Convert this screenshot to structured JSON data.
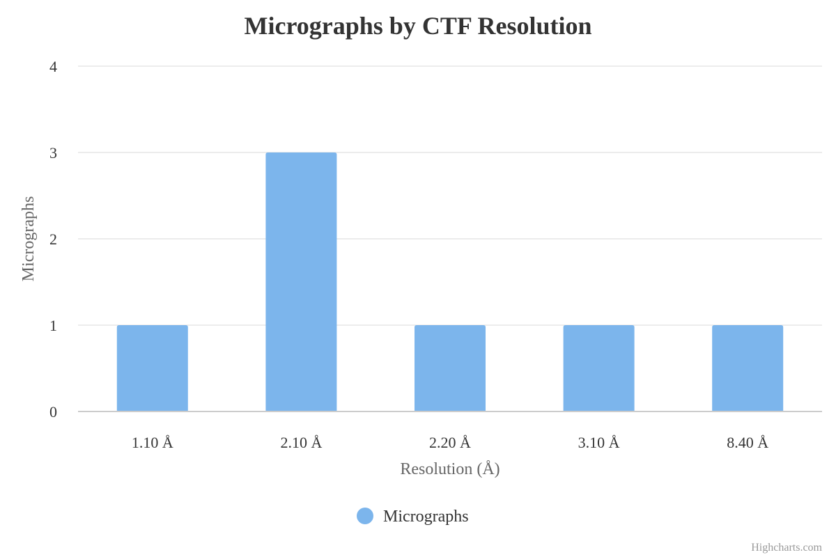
{
  "chart_data": {
    "type": "bar",
    "title": "Micrographs by CTF Resolution",
    "xlabel": "Resolution (Å)",
    "ylabel": "Micrographs",
    "categories": [
      "1.10 Å",
      "2.10 Å",
      "2.20 Å",
      "3.10 Å",
      "8.40 Å"
    ],
    "series": [
      {
        "name": "Micrographs",
        "values": [
          1,
          3,
          1,
          1,
          1
        ],
        "color": "#7cb5ec"
      }
    ],
    "ylim": [
      0,
      4
    ],
    "yticks": [
      "0",
      "1",
      "2",
      "3",
      "4"
    ],
    "grid": true,
    "legend_position": "bottom-center"
  },
  "credits": "Highcharts.com"
}
